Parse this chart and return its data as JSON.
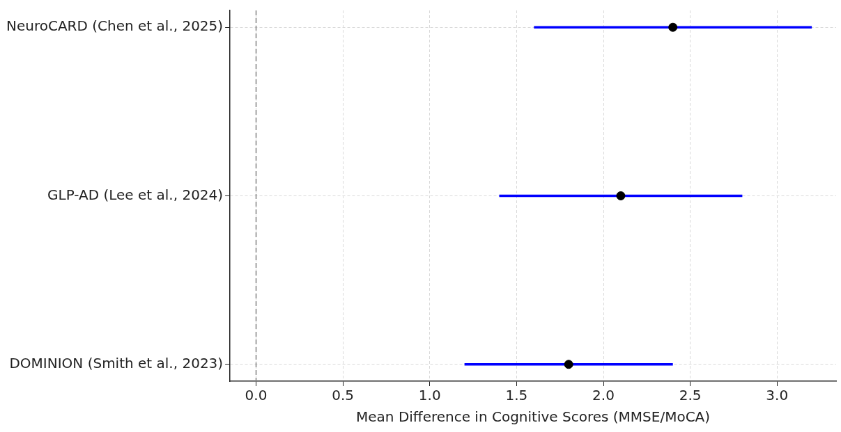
{
  "chart_data": {
    "type": "scatter",
    "orientation": "horizontal",
    "xlabel": "Mean Difference in Cognitive Scores (MMSE/MoCA)",
    "categories": [
      "NeuroCARD (Chen et al., 2025)",
      "GLP-AD (Lee et al., 2024)",
      "DOMINION (Smith et al., 2023)"
    ],
    "series": [
      {
        "color": "#000000",
        "values": [
          2.4,
          2.1,
          1.8
        ],
        "errors": [
          [
            1.6,
            3.2
          ],
          [
            1.4,
            2.8
          ],
          [
            1.2,
            2.4
          ]
        ]
      }
    ],
    "xlim": [
      -0.15,
      3.34
    ],
    "xticks": [
      {
        "value": 0,
        "label": "0.0"
      },
      {
        "value": 0.5,
        "label": "0.5"
      },
      {
        "value": 1,
        "label": "1.0"
      },
      {
        "value": 1.5,
        "label": "1.5"
      },
      {
        "value": 2,
        "label": "2.0"
      },
      {
        "value": 2.5,
        "label": "2.5"
      },
      {
        "value": 3,
        "label": "3.0"
      }
    ],
    "ref_lines": [
      {
        "axis": "x",
        "value": 0,
        "color": "#808080",
        "line_style": "dashed"
      }
    ],
    "grid": true,
    "marker": "circle",
    "legend": false
  }
}
